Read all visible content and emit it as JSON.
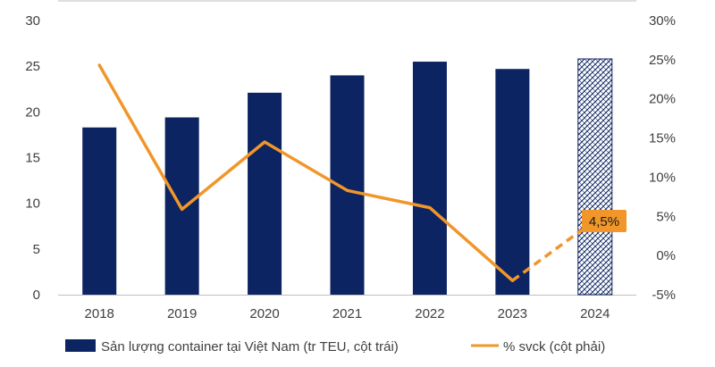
{
  "chart_data": {
    "type": "bar",
    "categories": [
      "2018",
      "2019",
      "2020",
      "2021",
      "2022",
      "2023",
      "2024"
    ],
    "series": [
      {
        "name": "Sản lượng container tại Việt Nam (tr TEU, cột trái)",
        "type": "bar",
        "axis": "left",
        "values": [
          18.3,
          19.4,
          22.1,
          24.0,
          25.5,
          24.7,
          25.8
        ],
        "color": "#0c2461",
        "forecast_index": 6
      },
      {
        "name": "% svck (cột phải)",
        "type": "line",
        "axis": "right",
        "values": [
          24.3,
          5.9,
          14.5,
          8.3,
          6.1,
          -3.2,
          4.5
        ],
        "color": "#f0962a",
        "dashed_from_index": 5
      }
    ],
    "left_axis": {
      "min": 0,
      "max": 30,
      "step": 5,
      "tick_labels": [
        "0",
        "5",
        "10",
        "15",
        "20",
        "25",
        "30"
      ]
    },
    "right_axis": {
      "min": -5,
      "max": 30,
      "step": 5,
      "tick_labels": [
        "-5%",
        "0%",
        "5%",
        "10%",
        "15%",
        "20%",
        "25%",
        "30%"
      ]
    },
    "annotation": {
      "text": "4,5%",
      "category": "2024",
      "color": "#f0962a"
    },
    "legend_position": "bottom",
    "grid": false
  }
}
